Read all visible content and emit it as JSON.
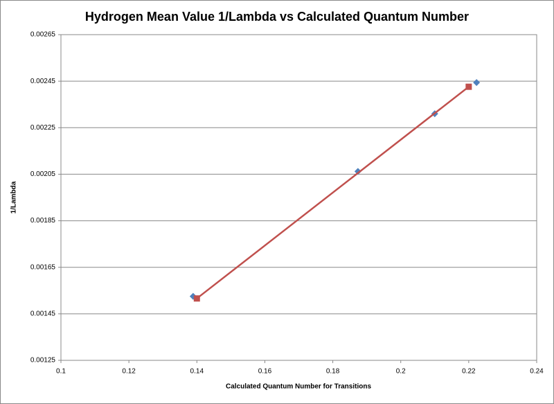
{
  "chart_data": {
    "type": "scatter",
    "title": "Hydrogen Mean Value 1/Lambda vs Calculated Quantum Number",
    "x_label": "Calculated Quantum Number for Transitions",
    "y_label": "1/Lambda",
    "xlim": [
      0.1,
      0.24
    ],
    "xticks": [
      0.1,
      0.12,
      0.14,
      0.16,
      0.18,
      0.2,
      0.22,
      0.24
    ],
    "ylim": [
      0.00125,
      0.00265
    ],
    "yticks": [
      0.00125,
      0.00145,
      0.00165,
      0.00185,
      0.00205,
      0.00225,
      0.00245,
      0.00265
    ],
    "grid": true,
    "series": [
      {
        "color": "#4f81bd",
        "marker": "diamond",
        "line": false,
        "x": [
          0.1389,
          0.1874,
          0.21,
          0.2223
        ],
        "values": [
          0.001525,
          0.002062,
          0.00231,
          0.002444
        ]
      },
      {
        "color": "#c0504d",
        "marker": "square",
        "line": true,
        "x": [
          0.14,
          0.22
        ],
        "values": [
          0.001516,
          0.002426
        ]
      }
    ]
  }
}
